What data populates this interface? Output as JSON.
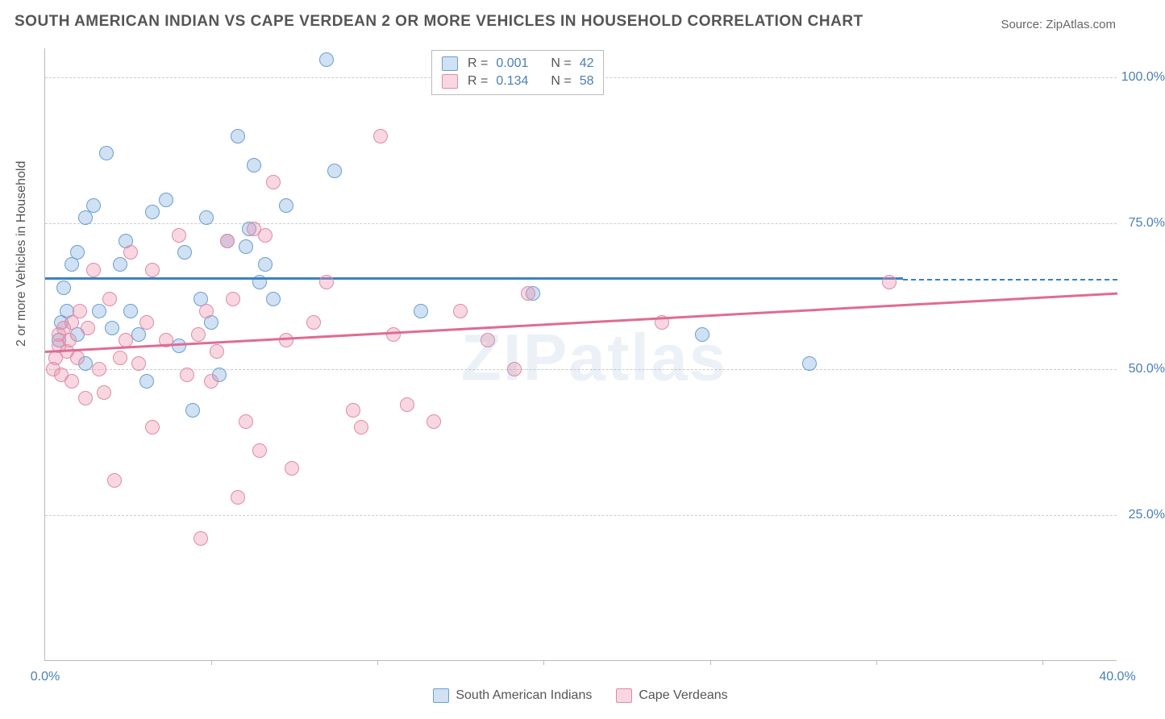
{
  "title": "SOUTH AMERICAN INDIAN VS CAPE VERDEAN 2 OR MORE VEHICLES IN HOUSEHOLD CORRELATION CHART",
  "source": "Source: ZipAtlas.com",
  "watermark": "ZIPatlas",
  "ylabel": "2 or more Vehicles in Household",
  "chart": {
    "type": "scatter",
    "xlim": [
      0,
      40
    ],
    "ylim": [
      0,
      105
    ],
    "xtick_values": [
      0,
      40
    ],
    "xtick_labels": [
      "0.0%",
      "40.0%"
    ],
    "xtick_minor": [
      6.2,
      12.4,
      18.6,
      24.8,
      31.0,
      37.2
    ],
    "ytick_values": [
      25,
      50,
      75,
      100
    ],
    "ytick_labels": [
      "25.0%",
      "50.0%",
      "75.0%",
      "100.0%"
    ],
    "background_color": "#ffffff",
    "grid_color": "#cccccc",
    "axis_color": "#bbbbbb",
    "tick_label_color": "#4a7fb5",
    "marker_radius": 9,
    "trend_width": 3,
    "series": [
      {
        "name": "South American Indians",
        "color_fill": "rgba(120,170,220,0.35)",
        "color_stroke": "#6a9ed4",
        "trend_color": "#3b82c4",
        "r": "0.001",
        "n": "42",
        "trend": {
          "x1": 0,
          "y1": 65.5,
          "x2": 32,
          "y2": 65.5,
          "ext_x2": 40,
          "ext_y2": 65.5
        },
        "points": [
          [
            0.5,
            55
          ],
          [
            0.6,
            58
          ],
          [
            0.8,
            60
          ],
          [
            0.7,
            64
          ],
          [
            1.0,
            68
          ],
          [
            1.2,
            70
          ],
          [
            1.5,
            76
          ],
          [
            1.8,
            78
          ],
          [
            1.2,
            56
          ],
          [
            1.5,
            51
          ],
          [
            2.0,
            60
          ],
          [
            2.3,
            87
          ],
          [
            2.5,
            57
          ],
          [
            2.8,
            68
          ],
          [
            3.0,
            72
          ],
          [
            3.2,
            60
          ],
          [
            3.5,
            56
          ],
          [
            4.0,
            77
          ],
          [
            4.5,
            79
          ],
          [
            3.8,
            48
          ],
          [
            5.0,
            54
          ],
          [
            5.2,
            70
          ],
          [
            5.8,
            62
          ],
          [
            6.0,
            76
          ],
          [
            6.2,
            58
          ],
          [
            6.5,
            49
          ],
          [
            6.8,
            72
          ],
          [
            7.5,
            71
          ],
          [
            7.6,
            74
          ],
          [
            7.8,
            85
          ],
          [
            7.2,
            90
          ],
          [
            5.5,
            43
          ],
          [
            8.0,
            65
          ],
          [
            8.2,
            68
          ],
          [
            8.5,
            62
          ],
          [
            9.0,
            78
          ],
          [
            10.5,
            103
          ],
          [
            10.8,
            84
          ],
          [
            14.0,
            60
          ],
          [
            18.2,
            63
          ],
          [
            24.5,
            56
          ],
          [
            28.5,
            51
          ]
        ]
      },
      {
        "name": "Cape Verdeans",
        "color_fill": "rgba(235,140,170,0.35)",
        "color_stroke": "#e08aa8",
        "trend_color": "#e06b94",
        "r": "0.134",
        "n": "58",
        "trend": {
          "x1": 0,
          "y1": 53,
          "x2": 40,
          "y2": 63
        },
        "points": [
          [
            0.3,
            50
          ],
          [
            0.4,
            52
          ],
          [
            0.5,
            54
          ],
          [
            0.5,
            56
          ],
          [
            0.6,
            49
          ],
          [
            0.7,
            57
          ],
          [
            0.8,
            53
          ],
          [
            0.9,
            55
          ],
          [
            1.0,
            58
          ],
          [
            1.0,
            48
          ],
          [
            1.2,
            52
          ],
          [
            1.3,
            60
          ],
          [
            1.5,
            45
          ],
          [
            1.6,
            57
          ],
          [
            1.8,
            67
          ],
          [
            2.0,
            50
          ],
          [
            2.2,
            46
          ],
          [
            2.4,
            62
          ],
          [
            2.6,
            31
          ],
          [
            2.8,
            52
          ],
          [
            3.0,
            55
          ],
          [
            3.2,
            70
          ],
          [
            3.5,
            51
          ],
          [
            3.8,
            58
          ],
          [
            4.0,
            67
          ],
          [
            4.0,
            40
          ],
          [
            4.5,
            55
          ],
          [
            5.0,
            73
          ],
          [
            5.3,
            49
          ],
          [
            5.7,
            56
          ],
          [
            5.8,
            21
          ],
          [
            6.0,
            60
          ],
          [
            6.2,
            48
          ],
          [
            6.4,
            53
          ],
          [
            6.8,
            72
          ],
          [
            7.0,
            62
          ],
          [
            7.2,
            28
          ],
          [
            7.5,
            41
          ],
          [
            7.8,
            74
          ],
          [
            8.0,
            36
          ],
          [
            8.2,
            73
          ],
          [
            8.5,
            82
          ],
          [
            9.0,
            55
          ],
          [
            9.2,
            33
          ],
          [
            10,
            58
          ],
          [
            10.5,
            65
          ],
          [
            11.5,
            43
          ],
          [
            11.8,
            40
          ],
          [
            12.5,
            90
          ],
          [
            13.0,
            56
          ],
          [
            13.5,
            44
          ],
          [
            14.5,
            41
          ],
          [
            15.5,
            60
          ],
          [
            16.5,
            55
          ],
          [
            17.5,
            50
          ],
          [
            18.0,
            63
          ],
          [
            23.0,
            58
          ],
          [
            31.5,
            65
          ]
        ]
      }
    ]
  },
  "legend_bottom": [
    {
      "swatch": "s1",
      "label": "South American Indians"
    },
    {
      "swatch": "s2",
      "label": "Cape Verdeans"
    }
  ]
}
